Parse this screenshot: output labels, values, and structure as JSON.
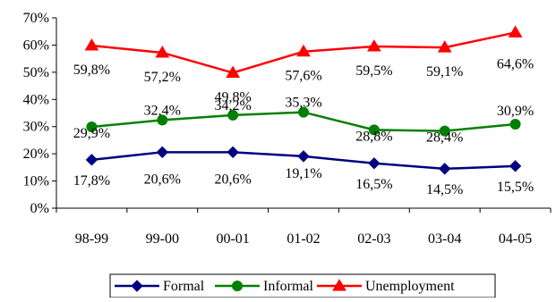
{
  "chart_data": {
    "type": "line",
    "categories": [
      "98-99",
      "99-00",
      "00-01",
      "01-02",
      "02-03",
      "03-04",
      "04-05"
    ],
    "yticks": [
      "0%",
      "10%",
      "20%",
      "30%",
      "40%",
      "50%",
      "60%",
      "70%"
    ],
    "ylim": [
      0,
      70
    ],
    "grid": false,
    "legend_position": "bottom",
    "series": [
      {
        "name": "Formal",
        "color": "#000080",
        "marker": "diamond",
        "values": [
          17.8,
          20.6,
          20.6,
          19.1,
          16.5,
          14.5,
          15.5
        ],
        "labels": [
          "17,8%",
          "20,6%",
          "20,6%",
          "19,1%",
          "16,5%",
          "14,5%",
          "15,5%"
        ]
      },
      {
        "name": "Informal",
        "color": "#008000",
        "marker": "circle",
        "values": [
          29.9,
          32.4,
          34.2,
          35.3,
          28.8,
          28.4,
          30.9
        ],
        "labels": [
          "29,9%",
          "32,4%",
          "34,2%",
          "35,3%",
          "28,8%",
          "28,4%",
          "30,9%"
        ]
      },
      {
        "name": "Unemployment",
        "color": "#ff0000",
        "marker": "triangle",
        "values": [
          59.8,
          57.2,
          49.8,
          57.6,
          59.5,
          59.1,
          64.6
        ],
        "labels": [
          "59,8%",
          "57,2%",
          "49,8%",
          "57,6%",
          "59,5%",
          "59,1%",
          "64,6%"
        ]
      }
    ]
  }
}
